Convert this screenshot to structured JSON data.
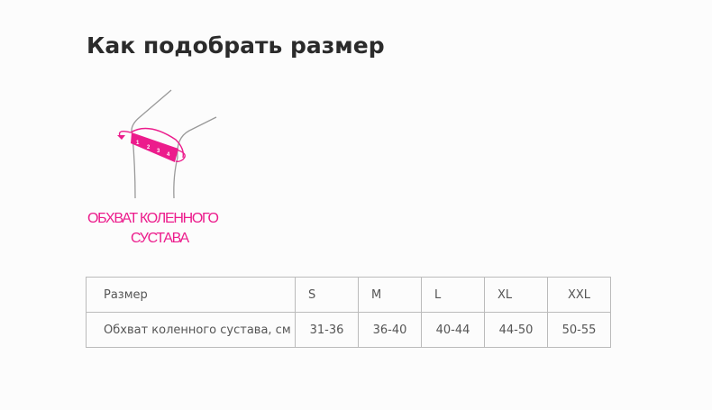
{
  "page_title": "Как подобрать размер",
  "illustration": {
    "caption_line1": "ОБХВАТ КОЛЕННОГО",
    "caption_line2": "СУСТАВА",
    "tape_numbers": [
      "1",
      "2",
      "3",
      "4"
    ],
    "accent_color": "#ec1c8c"
  },
  "size_table": {
    "header_label": "Размер",
    "sizes": [
      "S",
      "M",
      "L",
      "XL",
      "XXL"
    ],
    "row_label": "Обхват коленного сустава, см",
    "values": [
      "31-36",
      "36-40",
      "40-44",
      "44-50",
      "50-55"
    ]
  }
}
